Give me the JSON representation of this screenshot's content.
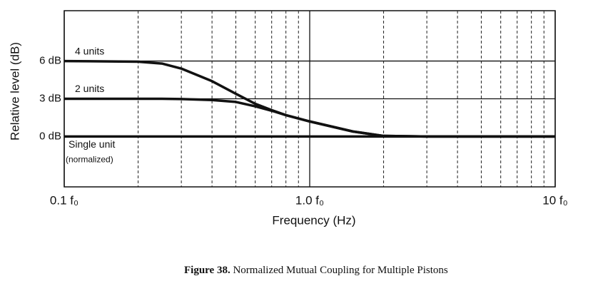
{
  "chart_data": {
    "type": "line",
    "x_label": "Frequency (Hz)",
    "y_label": "Relative level (dB)",
    "xscale": "log",
    "xlim": [
      0.1,
      10
    ],
    "ylim": [
      -4,
      10
    ],
    "xticks": [
      {
        "value": 0.1,
        "label": "0.1 f₀"
      },
      {
        "value": 1,
        "label": "1.0 f₀"
      },
      {
        "value": 10,
        "label": "10 f₀"
      }
    ],
    "minor_xticks": [
      0.2,
      0.3,
      0.4,
      0.5,
      0.6,
      0.7,
      0.8,
      0.9,
      2,
      3,
      4,
      5,
      6,
      7,
      8,
      9
    ],
    "yticks": [
      {
        "value": 0,
        "label": "0 dB"
      },
      {
        "value": 3,
        "label": "3 dB"
      },
      {
        "value": 6,
        "label": "6 dB"
      }
    ],
    "grid": true,
    "x": [
      0.1,
      0.2,
      0.25,
      0.3,
      0.4,
      0.5,
      0.6,
      0.7,
      0.8,
      1.0,
      1.5,
      2.0,
      3.0,
      10
    ],
    "series": [
      {
        "name": "4 units",
        "color": "#111111",
        "values": [
          6,
          5.95,
          5.8,
          5.4,
          4.4,
          3.4,
          2.6,
          2.1,
          1.7,
          1.2,
          0.4,
          0.05,
          0,
          0
        ]
      },
      {
        "name": "2 units",
        "color": "#111111",
        "values": [
          3,
          3,
          3,
          2.98,
          2.9,
          2.75,
          2.4,
          2.05,
          1.7,
          1.2,
          0.4,
          0.05,
          0,
          0
        ]
      },
      {
        "name": "Single unit",
        "color": "#111111",
        "values": [
          0,
          0,
          0,
          0,
          0,
          0,
          0,
          0,
          0,
          0,
          0,
          0,
          0,
          0
        ]
      }
    ],
    "annotation": "(normalized)",
    "caption_label": "Figure 38.",
    "caption_text": "Normalized Mutual Coupling for Multiple Pistons"
  }
}
